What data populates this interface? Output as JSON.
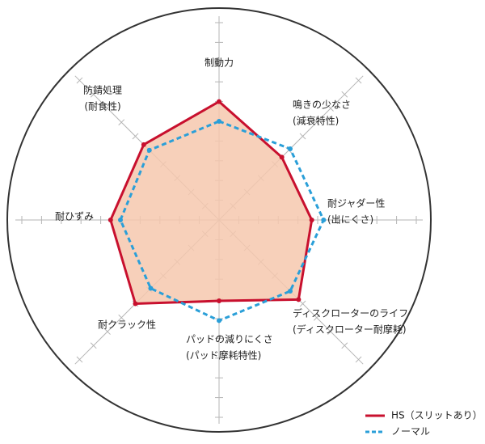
{
  "chart_data": {
    "type": "radar",
    "categories": [
      [
        "制動力"
      ],
      [
        "鳴きの少なさ",
        "(減衰特性)"
      ],
      [
        "耐ジャダー性",
        "(出にくさ)"
      ],
      [
        "ディスクローターのライフ",
        "(ディスクローター耐摩耗)"
      ],
      [
        "パッドの減りにくさ",
        "(パッド摩耗特性)"
      ],
      [
        "耐クラック性"
      ],
      [
        "耐ひずみ"
      ],
      [
        "防錆処理",
        "(耐食性)"
      ]
    ],
    "series": [
      {
        "name": "HS（スリットあり）",
        "color": "#c8102e",
        "fill": "#f6c8ae",
        "style": "solid",
        "values": [
          6,
          4.5,
          4.7,
          5.7,
          4.1,
          6,
          5.5,
          5.4
        ]
      },
      {
        "name": "ノーマル",
        "color": "#2a9fd8",
        "style": "dashed",
        "values": [
          5,
          5.1,
          5.3,
          5.1,
          5.1,
          4.9,
          5,
          5
        ]
      }
    ],
    "rlim": [
      0,
      10
    ],
    "rticks": [
      1,
      2,
      3,
      4,
      5,
      6,
      7,
      8,
      9,
      10
    ]
  }
}
